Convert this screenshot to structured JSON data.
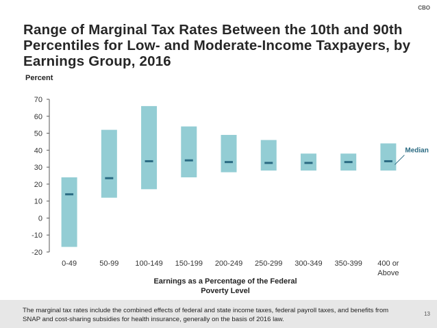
{
  "header": {
    "agency": "CBO"
  },
  "page_number": "13",
  "footnote": "The marginal tax rates include the combined effects of federal and state income taxes, federal payroll taxes, and benefits from SNAP and cost-sharing subsidies for health insurance, generally on the basis of 2016 law.",
  "colors": {
    "bar": "#93cdd4",
    "median": "#2a6a82",
    "axis": "#555555"
  },
  "chart_data": {
    "type": "bar",
    "title": "Range of Marginal Tax Rates Between the 10th and 90th Percentiles for Low- and Moderate-Income Taxpayers, by Earnings Group, 2016",
    "ylabel": "Percent",
    "xlabel": "Earnings as a Percentage of the Federal Poverty Level",
    "ylim": [
      -20,
      70
    ],
    "yticks": [
      "70",
      "60",
      "50",
      "40",
      "30",
      "20",
      "10",
      "0",
      "-10",
      "-20"
    ],
    "categories": [
      "0-49",
      "50-99",
      "100-149",
      "150-199",
      "200-249",
      "250-299",
      "300-349",
      "350-399",
      "400 or Above"
    ],
    "series": [
      {
        "name": "",
        "low": [
          -17,
          12,
          17,
          24,
          27,
          28,
          28,
          28,
          28
        ],
        "high": [
          24,
          52,
          66,
          54,
          49,
          46,
          38,
          38,
          44
        ]
      },
      {
        "name": "Median",
        "values": [
          14,
          23.5,
          33.5,
          34,
          33,
          32.5,
          32.5,
          33,
          33.5
        ]
      }
    ],
    "annotation": "Median"
  }
}
